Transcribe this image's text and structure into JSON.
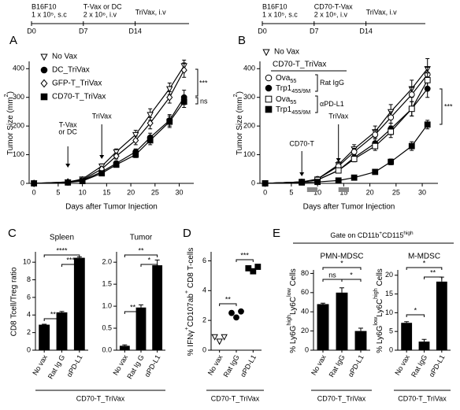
{
  "chart_data": [
    {
      "type": "line",
      "panel": "A",
      "timeline": {
        "days": [
          0,
          7,
          14
        ],
        "day_labels": [
          "D0",
          "D7",
          "D14"
        ],
        "notes": [
          [
            "B16F10",
            "1 x 10⁵, s.c"
          ],
          [
            "T-Vax or DC",
            "2 x 10⁶, i.v"
          ],
          [
            "TriVax, i.v"
          ]
        ]
      },
      "x": [
        0,
        7,
        10,
        14,
        17,
        21,
        24,
        28,
        31
      ],
      "xlim": [
        -1,
        33
      ],
      "xticks": [
        0,
        5,
        10,
        15,
        20,
        25,
        30
      ],
      "ylim": [
        0,
        420
      ],
      "yticks": [
        0,
        100,
        200,
        300,
        400
      ],
      "xlabel": "Days after Tumor Injection",
      "ylabel": {
        "parts": [
          "Tumor Size (mm",
          "2",
          ")"
        ],
        "shift": [
          "",
          "sup",
          ""
        ]
      },
      "series": [
        {
          "name": "No Vax",
          "marker": "tri-down-open",
          "color": "#000000",
          "values": [
            0,
            5,
            15,
            60,
            110,
            170,
            240,
            330,
            410
          ],
          "errors": [
            0,
            1,
            3,
            8,
            10,
            15,
            20,
            20,
            20
          ]
        },
        {
          "name": "DC_TriVax",
          "marker": "circle",
          "color": "#000000",
          "values": [
            0,
            3,
            10,
            40,
            70,
            110,
            160,
            220,
            300
          ],
          "errors": [
            0,
            1,
            2,
            5,
            8,
            10,
            15,
            20,
            25
          ]
        },
        {
          "name": "GFP-T_TriVax",
          "marker": "diamond-open",
          "color": "#000000",
          "values": [
            0,
            5,
            12,
            50,
            95,
            150,
            210,
            300,
            395
          ],
          "errors": [
            0,
            1,
            2,
            6,
            10,
            15,
            20,
            20,
            25
          ]
        },
        {
          "name": "CD70-T_TriVax",
          "marker": "square",
          "color": "#000000",
          "values": [
            0,
            3,
            8,
            35,
            65,
            100,
            150,
            215,
            285
          ],
          "errors": [
            0,
            1,
            2,
            5,
            8,
            10,
            15,
            20,
            20
          ]
        }
      ],
      "arrows": [
        {
          "label": [
            "T-Vax",
            "or DC"
          ],
          "day": 7
        },
        {
          "label": [
            "TriVax"
          ],
          "day": 14
        }
      ],
      "significance": [
        "***",
        "ns"
      ]
    },
    {
      "type": "line",
      "panel": "B",
      "timeline": {
        "days": [
          0,
          7,
          14
        ],
        "day_labels": [
          "D0",
          "D7",
          "D14"
        ],
        "notes": [
          [
            "B16F10",
            "1 x 10⁵, s.c"
          ],
          [
            "CD70-T-Vax",
            "2 x 10⁶, i.v"
          ],
          [
            "TriVax, i.v"
          ]
        ]
      },
      "x": [
        0,
        7,
        10,
        14,
        17,
        21,
        24,
        28,
        31
      ],
      "xlim": [
        -1,
        33
      ],
      "xticks": [
        0,
        5,
        10,
        15,
        20,
        25,
        30
      ],
      "ylim": [
        0,
        420
      ],
      "yticks": [
        0,
        100,
        200,
        300,
        400
      ],
      "xlabel": "Days after Tumor Injection",
      "ylabel": {
        "parts": [
          "Tumor Size (mm",
          "2",
          ")"
        ],
        "shift": [
          "",
          "sup",
          ""
        ]
      },
      "legend_header": "CD70-T_TriVax",
      "legend_groups": [
        "Rat IgG",
        "αPD-L1"
      ],
      "series": [
        {
          "name": "No Vax",
          "marker": "tri-down-open",
          "color": "#000000",
          "values": [
            0,
            5,
            15,
            65,
            120,
            180,
            250,
            330,
            400
          ],
          "errors": [
            0,
            1,
            3,
            10,
            15,
            20,
            25,
            30,
            35
          ]
        },
        {
          "name": {
            "parts": [
              "Ova",
              "55"
            ],
            "shift": [
              "",
              "sub"
            ]
          },
          "marker": "circle-open",
          "color": "#000000",
          "values": [
            0,
            5,
            15,
            60,
            110,
            170,
            230,
            310,
            380
          ],
          "errors": [
            0,
            1,
            3,
            8,
            12,
            15,
            20,
            25,
            25
          ]
        },
        {
          "name": {
            "parts": [
              "Trp1",
              "455/9M"
            ],
            "shift": [
              "",
              "sub"
            ]
          },
          "marker": "circle",
          "color": "#000000",
          "values": [
            0,
            5,
            12,
            45,
            90,
            140,
            190,
            260,
            330
          ],
          "errors": [
            0,
            1,
            2,
            6,
            10,
            15,
            20,
            25,
            30
          ]
        },
        {
          "name": {
            "parts": [
              "Ova",
              "55"
            ],
            "shift": [
              "",
              "sub"
            ]
          },
          "marker": "square-open",
          "color": "#000000",
          "values": [
            0,
            5,
            12,
            45,
            85,
            130,
            180,
            260,
            360
          ],
          "errors": [
            0,
            1,
            2,
            6,
            10,
            15,
            20,
            25,
            25
          ]
        },
        {
          "name": {
            "parts": [
              "Trp1",
              "455/9M"
            ],
            "shift": [
              "",
              "sub"
            ]
          },
          "marker": "square",
          "color": "#000000",
          "values": [
            0,
            3,
            5,
            10,
            20,
            40,
            75,
            130,
            205
          ],
          "errors": [
            0,
            1,
            1,
            2,
            4,
            6,
            10,
            15,
            15
          ]
        }
      ],
      "arrows": [
        {
          "label": [
            "CD70-T"
          ],
          "day": 7
        },
        {
          "label": [
            "TriVax"
          ],
          "day": 14
        }
      ],
      "significance": [
        "***"
      ]
    },
    {
      "type": "bar",
      "panel": "C",
      "title": "Spleen",
      "ylabel": "CD8 Tcell/Treg ratio",
      "categories": [
        "No vax",
        "Rat Ig G",
        "αPD-L1"
      ],
      "values": [
        2.9,
        4.3,
        10.5
      ],
      "errors": [
        0.05,
        0.1,
        0.1
      ],
      "color": "#000000",
      "ylim": [
        0,
        11
      ],
      "yticks": [
        0,
        2,
        4,
        6,
        8,
        10
      ],
      "significance": [
        "****",
        "***",
        "**"
      ],
      "group_label": "CD70-T_TriVax"
    },
    {
      "type": "bar",
      "title": "Tumor",
      "categories": [
        "No vax",
        "Rat Ig G",
        "αPD-L1"
      ],
      "values": [
        0.1,
        0.97,
        1.93
      ],
      "errors": [
        0.02,
        0.06,
        0.12
      ],
      "color": "#000000",
      "ylim": [
        0,
        2.2
      ],
      "yticks": [
        {
          "value": 0,
          "label": "0.0"
        },
        0.5,
        {
          "value": 1,
          "label": "1.0"
        },
        1.5,
        {
          "value": 2,
          "label": "2.0"
        }
      ],
      "significance": [
        "**",
        "*",
        "**"
      ]
    },
    {
      "type": "strip",
      "panel": "D",
      "ylabel": {
        "parts": [
          "% IFNγ",
          "+",
          "CD107ab",
          "+",
          " CD8 T-cells"
        ],
        "shift": [
          "",
          "sup",
          "",
          "sup",
          ""
        ]
      },
      "categories": [
        "No vax",
        "Rat IgG",
        "αPD-L1"
      ],
      "values": [
        [
          0.9,
          0.6,
          0.9
        ],
        [
          2.5,
          2.2,
          2.6
        ],
        [
          5.5,
          5.3,
          5.6
        ]
      ],
      "markers": [
        "tri-down-open",
        "circle",
        "square"
      ],
      "color": "#000000",
      "ylim": [
        0,
        6.5
      ],
      "yticks": [
        0,
        2,
        4,
        6
      ],
      "significance": [
        "***",
        "**"
      ],
      "group_label": "CD70-T_TriVax"
    },
    {
      "type": "bar",
      "panel": "E",
      "header": {
        "parts": [
          "Gate on CD11b",
          "+",
          "CD115",
          "high"
        ],
        "shift": [
          "",
          "sup",
          "",
          "sup"
        ]
      },
      "title": "PMN-MDSC",
      "ylabel": {
        "parts": [
          "% Ly6G",
          "high",
          "Ly6C",
          "low",
          " Cells"
        ],
        "shift": [
          "",
          "sup",
          "",
          "sup",
          ""
        ]
      },
      "categories": [
        "No vax",
        "Rat IgG",
        "αPD-L1"
      ],
      "values": [
        48,
        60,
        20
      ],
      "errors": [
        1,
        5,
        3
      ],
      "color": "#000000",
      "ylim": [
        0,
        82
      ],
      "yticks": [
        0,
        20,
        40,
        60,
        80
      ],
      "significance": [
        "*",
        "ns",
        "*"
      ],
      "group_label": "CD70-T_TriVax"
    },
    {
      "type": "bar",
      "title": "M-MDSC",
      "ylabel": {
        "parts": [
          "% Ly6G",
          "low",
          "Ly6C",
          "high",
          " Cells"
        ],
        "shift": [
          "",
          "sup",
          "",
          "sup",
          ""
        ]
      },
      "categories": [
        "No vax",
        "Rat IgG",
        "αPD-L1"
      ],
      "values": [
        7.3,
        2.3,
        18.3
      ],
      "errors": [
        0.3,
        0.6,
        1.2
      ],
      "color": "#000000",
      "ylim": [
        0,
        21
      ],
      "yticks": [
        0,
        5,
        10,
        15,
        20
      ],
      "significance": [
        "*",
        "**",
        "*"
      ],
      "group_label": "CD70-T_TriVax"
    }
  ]
}
